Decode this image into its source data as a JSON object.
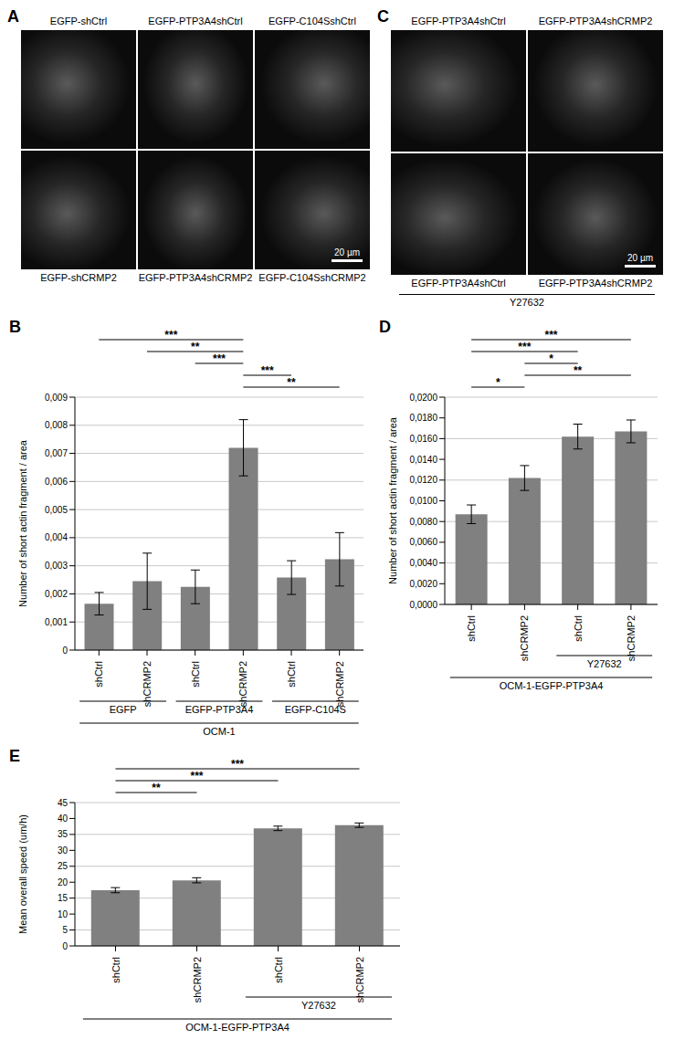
{
  "image_panels": [
    {
      "panel": "A",
      "rows": [
        [
          "EGFP-shCtrl",
          "EGFP-PTP3A4shCtrl",
          "EGFP-C104SshCtrl"
        ],
        [
          "EGFP-shCRMP2",
          "EGFP-PTP3A4shCRMP2",
          "EGFP-C104SshCRMP2"
        ]
      ],
      "scale_bar": "20 µm"
    },
    {
      "panel": "C",
      "rows": [
        [
          "EGFP-PTP3A4shCtrl",
          "EGFP-PTP3A4shCRMP2"
        ],
        [
          "EGFP-PTP3A4shCtrl",
          "EGFP-PTP3A4shCRMP2"
        ]
      ],
      "bottom_label": "Y27632",
      "scale_bar": "20 µm"
    }
  ],
  "chart_data": [
    {
      "panel": "B",
      "type": "bar",
      "y_label": "Number of short actin fragment / area",
      "categories": [
        "shCtrl",
        "shCRMP2",
        "shCtrl",
        "shCRMP2",
        "shCtrl",
        "shCRMP2"
      ],
      "values": [
        0.00165,
        0.00245,
        0.00225,
        0.0072,
        0.00258,
        0.00323
      ],
      "errors": [
        0.0004,
        0.001,
        0.0006,
        0.001,
        0.0006,
        0.00095
      ],
      "color": "#808080",
      "ylim": [
        0,
        0.009
      ],
      "yticks": [
        0,
        {
          "value": 0.001,
          "label": "0,001"
        },
        {
          "value": 0.002,
          "label": "0,002"
        },
        {
          "value": 0.003,
          "label": "0,003"
        },
        {
          "value": 0.004,
          "label": "0,004"
        },
        {
          "value": 0.005,
          "label": "0,005"
        },
        {
          "value": 0.006,
          "label": "0,006"
        },
        {
          "value": 0.007,
          "label": "0,007"
        },
        {
          "value": 0.008,
          "label": "0,008"
        },
        {
          "value": 0.009,
          "label": "0,009"
        }
      ],
      "grid": true,
      "significance": [
        {
          "from": 0,
          "to": 3,
          "label": "***"
        },
        {
          "from": 1,
          "to": 3,
          "label": "**"
        },
        {
          "from": 2,
          "to": 3,
          "label": "***"
        },
        {
          "from": 3,
          "to": 4,
          "label": "***"
        },
        {
          "from": 3,
          "to": 5,
          "label": "**"
        }
      ],
      "group_rows": [
        [
          {
            "label": "EGFP",
            "from": 0,
            "to": 1
          },
          {
            "label": "EGFP-PTP3A4",
            "from": 2,
            "to": 3
          },
          {
            "label": "EGFP-C104S",
            "from": 4,
            "to": 5
          }
        ],
        [
          {
            "label": "OCM-1",
            "from": 0,
            "to": 5
          }
        ]
      ]
    },
    {
      "panel": "D",
      "type": "bar",
      "y_label": "Number of short actin fragment / area",
      "categories": [
        "shCtrl",
        "shCRMP2",
        "shCtrl",
        "shCRMP2"
      ],
      "values": [
        0.0087,
        0.0122,
        0.0162,
        0.0167
      ],
      "errors": [
        0.0009,
        0.0012,
        0.0012,
        0.0011
      ],
      "color": "#808080",
      "ylim": [
        0,
        0.02
      ],
      "yticks": [
        {
          "value": 0,
          "label": "0,0000"
        },
        {
          "value": 0.002,
          "label": "0,0020"
        },
        {
          "value": 0.004,
          "label": "0,0040"
        },
        {
          "value": 0.006,
          "label": "0,0060"
        },
        {
          "value": 0.008,
          "label": "0,0080"
        },
        {
          "value": 0.01,
          "label": "0,0100"
        },
        {
          "value": 0.012,
          "label": "0,0120"
        },
        {
          "value": 0.014,
          "label": "0,0140"
        },
        {
          "value": 0.016,
          "label": "0,0160"
        },
        {
          "value": 0.018,
          "label": "0,0180"
        },
        {
          "value": 0.02,
          "label": "0,0200"
        }
      ],
      "grid": true,
      "significance": [
        {
          "from": 0,
          "to": 3,
          "label": "***"
        },
        {
          "from": 0,
          "to": 2,
          "label": "***"
        },
        {
          "from": 1,
          "to": 2,
          "label": "*"
        },
        {
          "from": 1,
          "to": 3,
          "label": "**"
        },
        {
          "from": 0,
          "to": 1,
          "label": "*"
        }
      ],
      "group_rows": [
        [
          {
            "label": "Y27632",
            "from": 2,
            "to": 3
          }
        ],
        [
          {
            "label": "OCM-1-EGFP-PTP3A4",
            "from": 0,
            "to": 3
          }
        ]
      ]
    },
    {
      "panel": "E",
      "type": "bar",
      "y_label": "Mean overall speed (um/h)",
      "categories": [
        "shCtrl",
        "shCRMP2",
        "shCtrl",
        "shCRMP2"
      ],
      "values": [
        17.5,
        20.6,
        36.9,
        37.9
      ],
      "errors": [
        0.8,
        0.8,
        0.7,
        0.7
      ],
      "color": "#808080",
      "ylim": [
        0,
        45
      ],
      "yticks": [
        0,
        5,
        10,
        15,
        20,
        25,
        30,
        35,
        40,
        45
      ],
      "grid": true,
      "significance": [
        {
          "from": 0,
          "to": 3,
          "label": "***"
        },
        {
          "from": 0,
          "to": 2,
          "label": "***"
        },
        {
          "from": 0,
          "to": 1,
          "label": "**"
        }
      ],
      "group_rows": [
        [
          {
            "label": "Y27632",
            "from": 2,
            "to": 3
          }
        ],
        [
          {
            "label": "OCM-1-EGFP-PTP3A4",
            "from": 0,
            "to": 3
          }
        ]
      ]
    }
  ]
}
